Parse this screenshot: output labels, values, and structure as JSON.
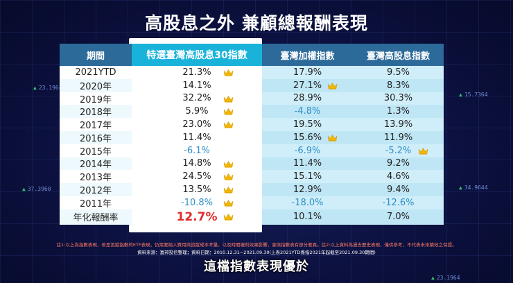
{
  "title": "高股息之外 兼顧總報酬表現",
  "tickers": [
    "23.1964",
    "15.7364",
    "37.3960",
    "34.9644",
    "23.1964"
  ],
  "table": {
    "headers": [
      "期間",
      "特選臺灣高股息30指數",
      "臺灣加權指數",
      "臺灣高股息指數"
    ],
    "rows": [
      {
        "period": "2021YTD",
        "a": "21.3%",
        "b": "17.9%",
        "c": "9.5%",
        "crown": "a"
      },
      {
        "period": "2020年",
        "a": "14.1%",
        "b": "27.1%",
        "c": "8.3%",
        "crown": "b"
      },
      {
        "period": "2019年",
        "a": "32.2%",
        "b": "28.9%",
        "c": "30.3%",
        "crown": "a"
      },
      {
        "period": "2018年",
        "a": "5.9%",
        "b": "-4.8%",
        "c": "1.3%",
        "crown": "a"
      },
      {
        "period": "2017年",
        "a": "23.0%",
        "b": "19.5%",
        "c": "13.9%",
        "crown": "a"
      },
      {
        "period": "2016年",
        "a": "11.4%",
        "b": "15.6%",
        "c": "11.9%",
        "crown": "b"
      },
      {
        "period": "2015年",
        "a": "-6.1%",
        "b": "-6.9%",
        "c": "-5.2%",
        "crown": "c"
      },
      {
        "period": "2014年",
        "a": "14.8%",
        "b": "11.4%",
        "c": "9.2%",
        "crown": "a"
      },
      {
        "period": "2013年",
        "a": "24.5%",
        "b": "15.1%",
        "c": "4.6%",
        "crown": "a"
      },
      {
        "period": "2012年",
        "a": "13.5%",
        "b": "12.9%",
        "c": "9.4%",
        "crown": "a"
      },
      {
        "period": "2011年",
        "a": "-10.8%",
        "b": "-18.0%",
        "c": "-12.6%",
        "crown": "a"
      },
      {
        "period": "年化報酬率",
        "a": "12.7%",
        "b": "10.1%",
        "c": "7.0%",
        "crown": "a"
      }
    ]
  },
  "footnote": "註1:以上為指數表現，若是追蹤指數的ETF表現，仍需要納入費用與追蹤成本考量，以及時間複利效果影響，會與指數表有部分差異。註2:以上資料為過去歷史表現，僅供參考，不代表未來績效之保證。",
  "source": "資料來源：富邦投信整理；資料日期：2010.12.31~2021.09.30(上表2021YTD係指2021年起截至2021.09.30期間)",
  "subtitle": "這檔指數表現優於"
}
